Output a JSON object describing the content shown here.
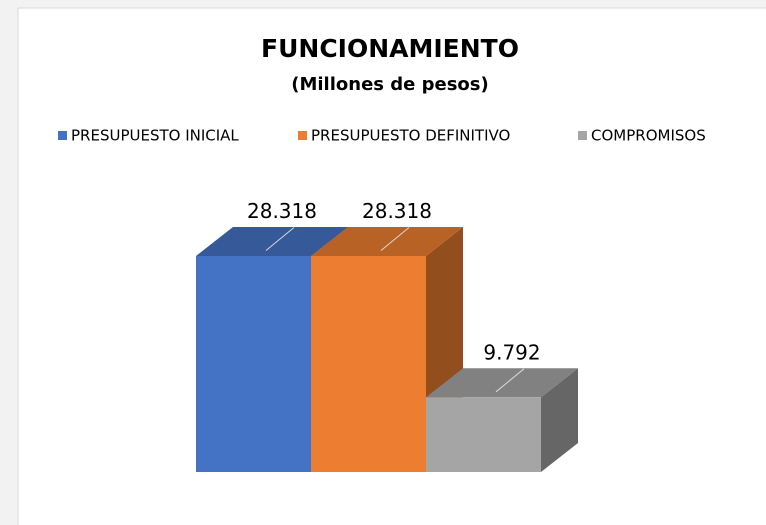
{
  "chart_data": {
    "type": "bar3d",
    "title": "FUNCIONAMIENTO",
    "subtitle": "(Millones de pesos)",
    "categories": [
      null
    ],
    "series": [
      {
        "name": "PRESUPUESTO INICIAL",
        "color": "#4472c4",
        "values": [
          28318
        ],
        "value_labels": [
          "28.318"
        ]
      },
      {
        "name": "PRESUPUESTO DEFINITIVO",
        "color": "#ed7d31",
        "values": [
          28318
        ],
        "value_labels": [
          "28.318"
        ]
      },
      {
        "name": "COMPROMISOS",
        "color": "#a5a5a5",
        "values": [
          9792
        ],
        "value_labels": [
          "9.792"
        ]
      }
    ],
    "legend": "top"
  }
}
